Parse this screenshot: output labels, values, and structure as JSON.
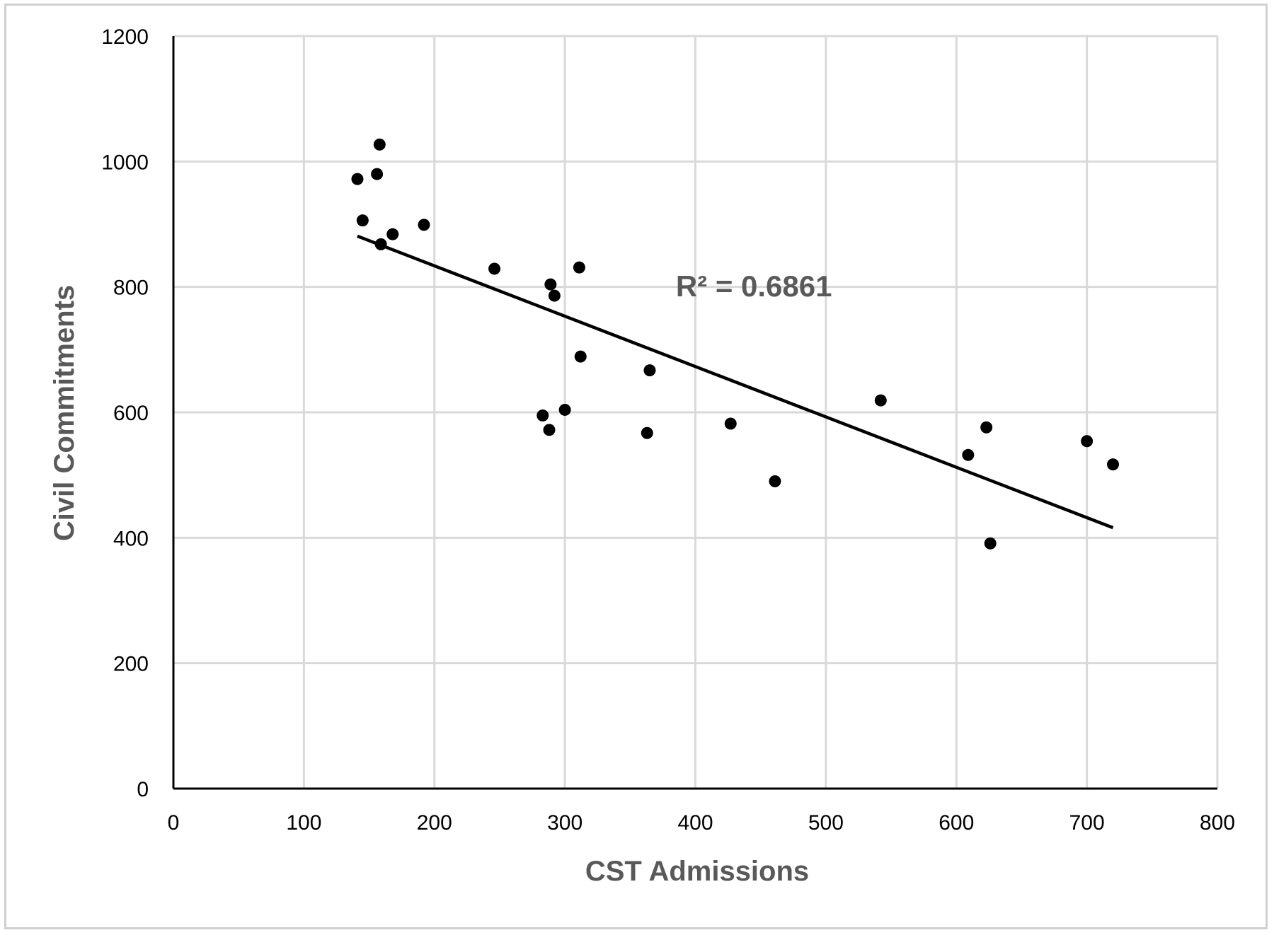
{
  "chart_data": {
    "type": "scatter",
    "xlabel": "CST Admissions",
    "ylabel": "Civil Commitments",
    "xlim": [
      0,
      800
    ],
    "ylim": [
      0,
      1200
    ],
    "x_ticks": [
      0,
      100,
      200,
      300,
      400,
      500,
      600,
      700,
      800
    ],
    "y_ticks": [
      0,
      200,
      400,
      600,
      800,
      1000,
      1200
    ],
    "x_tick_labels": [
      "0",
      "100",
      "200",
      "300",
      "400",
      "500",
      "600",
      "700",
      "800"
    ],
    "y_tick_labels": [
      "0",
      "200",
      "400",
      "600",
      "800",
      "1000",
      "1200"
    ],
    "grid": true,
    "legend": "none",
    "series": [
      {
        "points": [
          [
            141,
            972
          ],
          [
            145,
            906
          ],
          [
            156,
            980
          ],
          [
            158,
            1027
          ],
          [
            159,
            868
          ],
          [
            168,
            884
          ],
          [
            192,
            899
          ],
          [
            246,
            829
          ],
          [
            283,
            595
          ],
          [
            288,
            572
          ],
          [
            289,
            804
          ],
          [
            292,
            786
          ],
          [
            300,
            604
          ],
          [
            311,
            831
          ],
          [
            312,
            689
          ],
          [
            363,
            567
          ],
          [
            365,
            667
          ],
          [
            427,
            582
          ],
          [
            461,
            490
          ],
          [
            542,
            619
          ],
          [
            609,
            532
          ],
          [
            623,
            576
          ],
          [
            626,
            391
          ],
          [
            700,
            554
          ],
          [
            720,
            517
          ]
        ],
        "color": "#000000"
      }
    ],
    "trendline": {
      "x": [
        141,
        720
      ],
      "y": [
        881,
        416
      ],
      "color": "#000000"
    },
    "annotations": [
      {
        "text": "R² = 0.6861",
        "x": 385,
        "y": 785
      }
    ],
    "colors": {
      "grid": "#d9d9d9",
      "axis": "#000000",
      "axis_title": "#595959",
      "frame": "#d0d0d0"
    }
  }
}
